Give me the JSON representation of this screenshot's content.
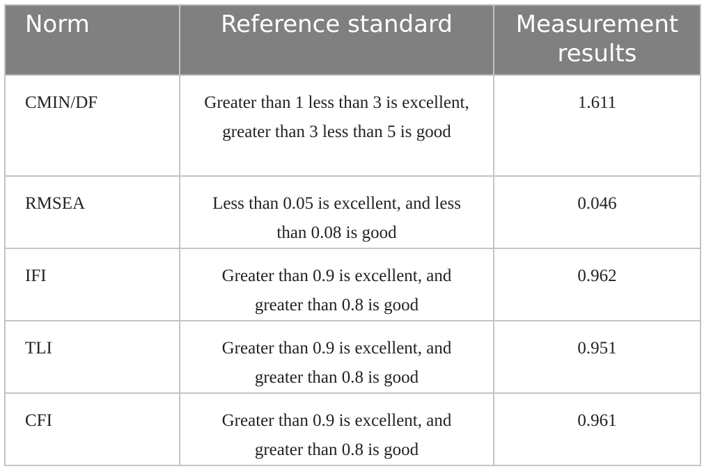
{
  "table": {
    "headers": {
      "norm": "Norm",
      "reference": "Reference standard",
      "results": "Measurement results"
    },
    "rows": [
      {
        "norm": "CMIN/DF",
        "reference": "Greater than 1 less than 3 is excellent, greater than 3 less than 5 is good",
        "result": "1.611"
      },
      {
        "norm": "RMSEA",
        "reference": "Less than 0.05 is excellent, and less than 0.08 is good",
        "result": "0.046"
      },
      {
        "norm": "IFI",
        "reference": "Greater than 0.9 is excellent, and greater than 0.8 is good",
        "result": "0.962"
      },
      {
        "norm": "TLI",
        "reference": "Greater than 0.9 is excellent, and greater than 0.8 is good",
        "result": "0.951"
      },
      {
        "norm": "CFI",
        "reference": "Greater than 0.9 is excellent, and greater than 0.8 is good",
        "result": "0.961"
      }
    ],
    "colors": {
      "header_bg": "#808080",
      "header_text": "#ffffff",
      "border": "#c4c4c4",
      "body_text": "#222222"
    }
  }
}
